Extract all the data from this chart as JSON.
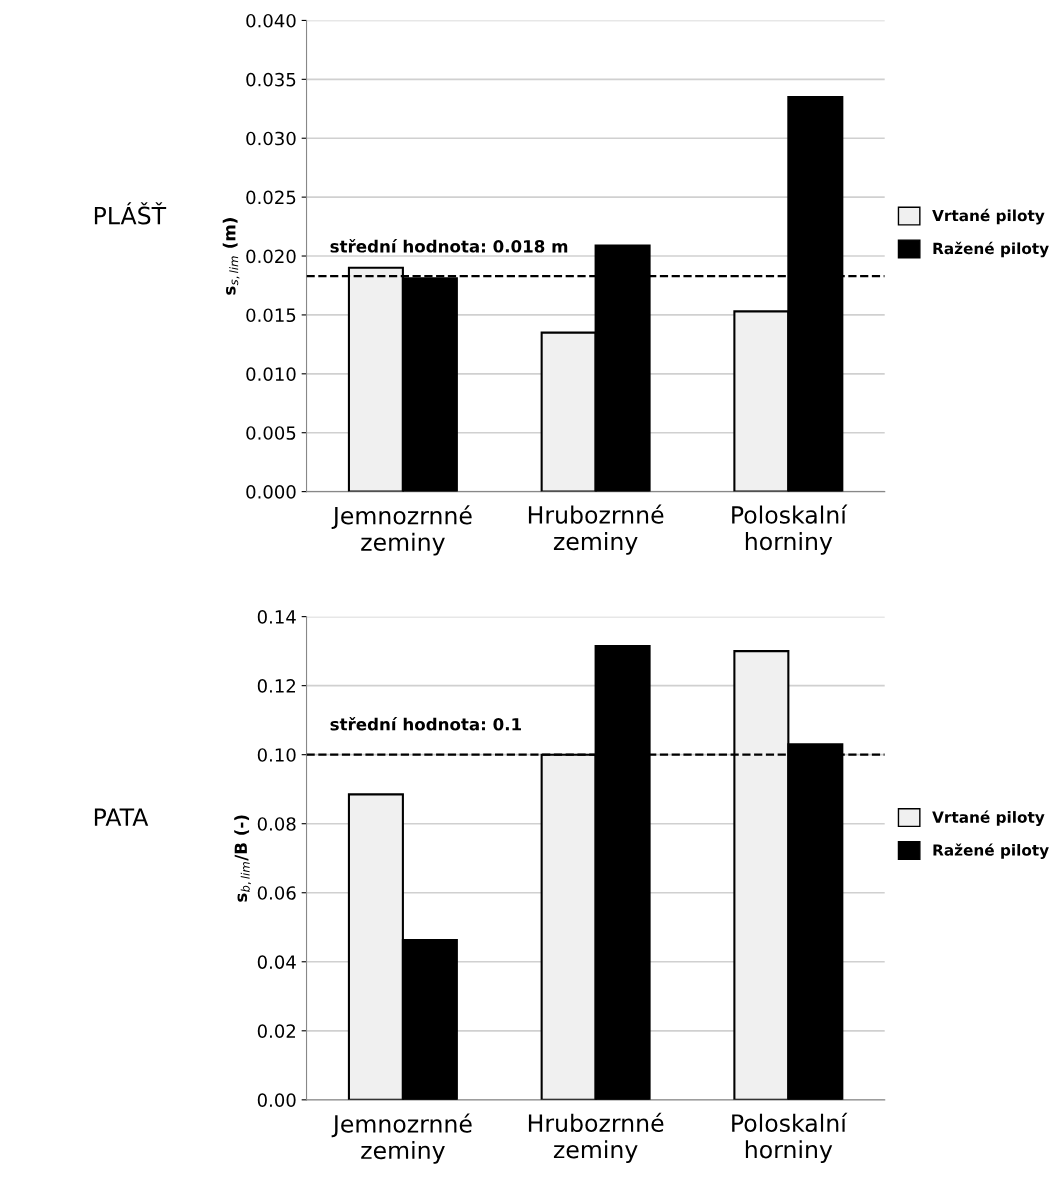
{
  "chart_data": [
    {
      "type": "bar",
      "title": "PLÁŠŤ",
      "ylabel": "s$_{s,lim}$ (m)",
      "categories": [
        "Jemnozrnné\nzeminy",
        "Hrubozrnné\nzeminy",
        "Poloskalní\nhorniny"
      ],
      "series": [
        {
          "name": "Vrtané piloty",
          "color": "#f0f0f0",
          "values": [
            0.019,
            0.0135,
            0.0153
          ]
        },
        {
          "name": "Ražené piloty",
          "color": "#000000",
          "values": [
            0.0181,
            0.0209,
            0.0335
          ]
        }
      ],
      "ylim": [
        0,
        0.04
      ],
      "yticks": [
        {
          "value": 0,
          "label": "0.000"
        },
        {
          "value": 0.005,
          "label": "0.005"
        },
        {
          "value": 0.01,
          "label": "0.010"
        },
        {
          "value": 0.015,
          "label": "0.015"
        },
        {
          "value": 0.02,
          "label": "0.020"
        },
        {
          "value": 0.025,
          "label": "0.025"
        },
        {
          "value": 0.03,
          "label": "0.030"
        },
        {
          "value": 0.035,
          "label": "0.035"
        },
        {
          "value": 0.04,
          "label": "0.040"
        }
      ],
      "ref_lines": [
        {
          "axis": "y",
          "value": 0.0183,
          "label": "střední hodnota: 0.018 m",
          "color": "#000000",
          "line_style": "dashed"
        }
      ],
      "grid": "y",
      "legend": "right"
    },
    {
      "type": "bar",
      "title": "PATA",
      "ylabel": "s$_{b,lim}$/B (-)",
      "categories": [
        "Jemnozrnné\nzeminy",
        "Hrubozrnné\nzeminy",
        "Poloskalní\nhorniny"
      ],
      "series": [
        {
          "name": "Vrtané piloty",
          "color": "#f0f0f0",
          "values": [
            0.0885,
            0.1,
            0.13
          ]
        },
        {
          "name": "Ražené piloty",
          "color": "#000000",
          "values": [
            0.0463,
            0.1315,
            0.103
          ]
        }
      ],
      "ylim": [
        0,
        0.14
      ],
      "yticks": [
        {
          "value": 0,
          "label": "0.00"
        },
        {
          "value": 0.02,
          "label": "0.02"
        },
        {
          "value": 0.04,
          "label": "0.04"
        },
        {
          "value": 0.06,
          "label": "0.06"
        },
        {
          "value": 0.08,
          "label": "0.08"
        },
        {
          "value": 0.1,
          "label": "0.10"
        },
        {
          "value": 0.12,
          "label": "0.12"
        },
        {
          "value": 0.14,
          "label": "0.14"
        }
      ],
      "ref_lines": [
        {
          "axis": "y",
          "value": 0.1,
          "label": "střední hodnota: 0.1",
          "color": "#000000",
          "line_style": "dashed"
        }
      ],
      "grid": "y",
      "legend": "right"
    }
  ]
}
